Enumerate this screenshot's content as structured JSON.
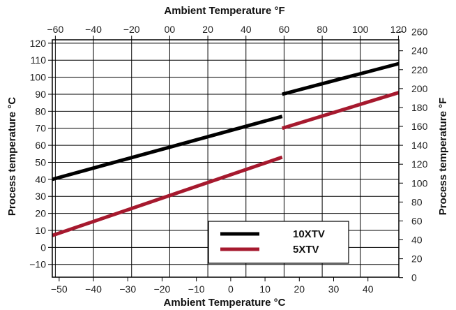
{
  "chart_data": {
    "type": "line",
    "grid": true,
    "colors": {
      "10XTV": "#000000",
      "5XTV": "#a6192e"
    },
    "x_bottom": {
      "label": "Ambient Temperature °C",
      "range": [
        -52,
        49
      ],
      "ticks": [
        "−50",
        "−40",
        "−30",
        "−20",
        "−10",
        "0",
        "10",
        "20",
        "30",
        "40"
      ],
      "tick_values": [
        -50,
        -40,
        -30,
        -20,
        -10,
        0,
        10,
        20,
        30,
        40
      ]
    },
    "x_top": {
      "label": "Ambient Temperature °F",
      "ticks": [
        "−60",
        "−40",
        "−20",
        "00",
        "20",
        "40",
        "60",
        "80",
        "100",
        "120"
      ],
      "tick_values": [
        -60,
        -40,
        -20,
        0,
        20,
        40,
        60,
        80,
        100,
        120
      ]
    },
    "y_left": {
      "label": "Process temperature °C",
      "range": [
        -17.5,
        122
      ],
      "ticks": [
        "−10",
        "0",
        "10",
        "20",
        "30",
        "40",
        "50",
        "60",
        "70",
        "80",
        "90",
        "100",
        "110",
        "120"
      ],
      "tick_values": [
        -10,
        0,
        10,
        20,
        30,
        40,
        50,
        60,
        70,
        80,
        90,
        100,
        110,
        120
      ]
    },
    "y_right": {
      "label": "Process temperature °F",
      "ticks": [
        "0",
        "20",
        "40",
        "60",
        "80",
        "100",
        "120",
        "140",
        "160",
        "180",
        "200",
        "220",
        "240",
        "260"
      ],
      "tick_values": [
        0,
        20,
        40,
        60,
        80,
        100,
        120,
        140,
        160,
        180,
        200,
        220,
        240,
        260
      ]
    },
    "series": [
      {
        "name": "10XTV",
        "segments": [
          [
            [
              -52,
              40
            ],
            [
              15,
              77
            ]
          ],
          [
            [
              15,
              90
            ],
            [
              49,
              108
            ]
          ]
        ]
      },
      {
        "name": "5XTV",
        "segments": [
          [
            [
              -52,
              7
            ],
            [
              15,
              53
            ]
          ],
          [
            [
              15,
              70
            ],
            [
              49,
              91
            ]
          ]
        ]
      }
    ],
    "legend": {
      "placement": "bottom-right",
      "entries": [
        "10XTV",
        "5XTV"
      ]
    }
  }
}
